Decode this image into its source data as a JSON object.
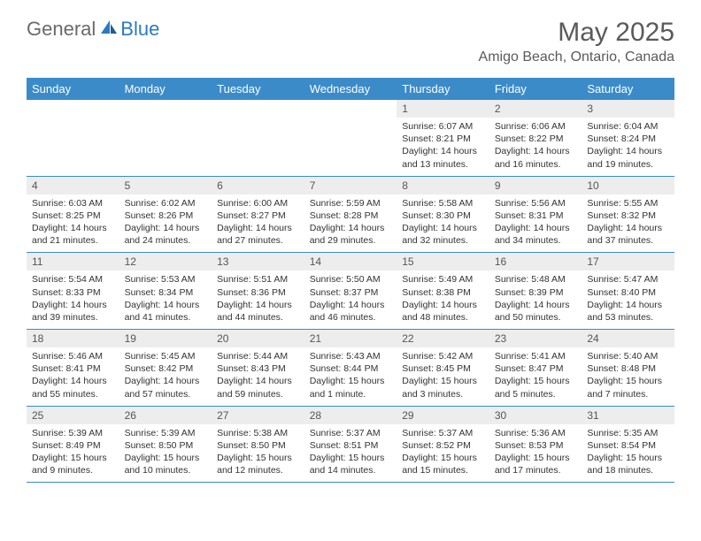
{
  "brand": {
    "text1": "General",
    "text2": "Blue"
  },
  "title": "May 2025",
  "location": "Amigo Beach, Ontario, Canada",
  "colors": {
    "header_bg": "#3b8bc9",
    "header_text": "#ffffff",
    "daynum_bg": "#ededed",
    "border": "#3b8bc9",
    "brand_gray": "#6a6a6a",
    "brand_blue": "#2b7bbf"
  },
  "weekdays": [
    "Sunday",
    "Monday",
    "Tuesday",
    "Wednesday",
    "Thursday",
    "Friday",
    "Saturday"
  ],
  "weeks": [
    {
      "nums": [
        "",
        "",
        "",
        "",
        "1",
        "2",
        "3"
      ],
      "details": [
        null,
        null,
        null,
        null,
        {
          "sunrise": "6:07 AM",
          "sunset": "8:21 PM",
          "day_h": 14,
          "day_m": 13
        },
        {
          "sunrise": "6:06 AM",
          "sunset": "8:22 PM",
          "day_h": 14,
          "day_m": 16
        },
        {
          "sunrise": "6:04 AM",
          "sunset": "8:24 PM",
          "day_h": 14,
          "day_m": 19
        }
      ]
    },
    {
      "nums": [
        "4",
        "5",
        "6",
        "7",
        "8",
        "9",
        "10"
      ],
      "details": [
        {
          "sunrise": "6:03 AM",
          "sunset": "8:25 PM",
          "day_h": 14,
          "day_m": 21
        },
        {
          "sunrise": "6:02 AM",
          "sunset": "8:26 PM",
          "day_h": 14,
          "day_m": 24
        },
        {
          "sunrise": "6:00 AM",
          "sunset": "8:27 PM",
          "day_h": 14,
          "day_m": 27
        },
        {
          "sunrise": "5:59 AM",
          "sunset": "8:28 PM",
          "day_h": 14,
          "day_m": 29
        },
        {
          "sunrise": "5:58 AM",
          "sunset": "8:30 PM",
          "day_h": 14,
          "day_m": 32
        },
        {
          "sunrise": "5:56 AM",
          "sunset": "8:31 PM",
          "day_h": 14,
          "day_m": 34
        },
        {
          "sunrise": "5:55 AM",
          "sunset": "8:32 PM",
          "day_h": 14,
          "day_m": 37
        }
      ]
    },
    {
      "nums": [
        "11",
        "12",
        "13",
        "14",
        "15",
        "16",
        "17"
      ],
      "details": [
        {
          "sunrise": "5:54 AM",
          "sunset": "8:33 PM",
          "day_h": 14,
          "day_m": 39
        },
        {
          "sunrise": "5:53 AM",
          "sunset": "8:34 PM",
          "day_h": 14,
          "day_m": 41
        },
        {
          "sunrise": "5:51 AM",
          "sunset": "8:36 PM",
          "day_h": 14,
          "day_m": 44
        },
        {
          "sunrise": "5:50 AM",
          "sunset": "8:37 PM",
          "day_h": 14,
          "day_m": 46
        },
        {
          "sunrise": "5:49 AM",
          "sunset": "8:38 PM",
          "day_h": 14,
          "day_m": 48
        },
        {
          "sunrise": "5:48 AM",
          "sunset": "8:39 PM",
          "day_h": 14,
          "day_m": 50
        },
        {
          "sunrise": "5:47 AM",
          "sunset": "8:40 PM",
          "day_h": 14,
          "day_m": 53
        }
      ]
    },
    {
      "nums": [
        "18",
        "19",
        "20",
        "21",
        "22",
        "23",
        "24"
      ],
      "details": [
        {
          "sunrise": "5:46 AM",
          "sunset": "8:41 PM",
          "day_h": 14,
          "day_m": 55
        },
        {
          "sunrise": "5:45 AM",
          "sunset": "8:42 PM",
          "day_h": 14,
          "day_m": 57
        },
        {
          "sunrise": "5:44 AM",
          "sunset": "8:43 PM",
          "day_h": 14,
          "day_m": 59
        },
        {
          "sunrise": "5:43 AM",
          "sunset": "8:44 PM",
          "day_h": 15,
          "day_m": 1
        },
        {
          "sunrise": "5:42 AM",
          "sunset": "8:45 PM",
          "day_h": 15,
          "day_m": 3
        },
        {
          "sunrise": "5:41 AM",
          "sunset": "8:47 PM",
          "day_h": 15,
          "day_m": 5
        },
        {
          "sunrise": "5:40 AM",
          "sunset": "8:48 PM",
          "day_h": 15,
          "day_m": 7
        }
      ]
    },
    {
      "nums": [
        "25",
        "26",
        "27",
        "28",
        "29",
        "30",
        "31"
      ],
      "details": [
        {
          "sunrise": "5:39 AM",
          "sunset": "8:49 PM",
          "day_h": 15,
          "day_m": 9
        },
        {
          "sunrise": "5:39 AM",
          "sunset": "8:50 PM",
          "day_h": 15,
          "day_m": 10
        },
        {
          "sunrise": "5:38 AM",
          "sunset": "8:50 PM",
          "day_h": 15,
          "day_m": 12
        },
        {
          "sunrise": "5:37 AM",
          "sunset": "8:51 PM",
          "day_h": 15,
          "day_m": 14
        },
        {
          "sunrise": "5:37 AM",
          "sunset": "8:52 PM",
          "day_h": 15,
          "day_m": 15
        },
        {
          "sunrise": "5:36 AM",
          "sunset": "8:53 PM",
          "day_h": 15,
          "day_m": 17
        },
        {
          "sunrise": "5:35 AM",
          "sunset": "8:54 PM",
          "day_h": 15,
          "day_m": 18
        }
      ]
    }
  ],
  "labels": {
    "sunrise": "Sunrise:",
    "sunset": "Sunset:",
    "daylight_prefix": "Daylight:",
    "hours_word": "hours",
    "and_word": "and",
    "minutes_word": "minutes.",
    "minute_word": "minute."
  }
}
